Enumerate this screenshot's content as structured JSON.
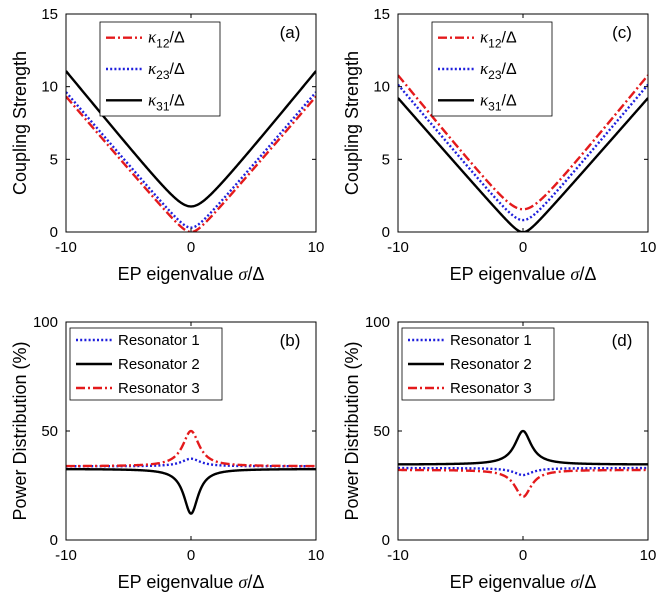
{
  "chart_data": [
    {
      "type": "line",
      "panel_label": "(a)",
      "xlabel": "EP eigenvalue σ/Δ",
      "ylabel": "Coupling Strength",
      "xlim": [
        -10,
        10
      ],
      "ylim": [
        0,
        15
      ],
      "xticks": [
        "-10",
        "0",
        "10"
      ],
      "yticks": [
        "0",
        "5",
        "10",
        "15"
      ],
      "legend_position": "top-center",
      "series": [
        {
          "name": "κ12/Δ",
          "sym": "κ",
          "sub": "12",
          "den": "/Δ",
          "style": "dashdot",
          "color": "#e41a1c",
          "curve": "hyperbola",
          "offset": -0.7,
          "slope": 1,
          "core": 0.7
        },
        {
          "name": "κ23/Δ",
          "sym": "κ",
          "sub": "23",
          "den": "/Δ",
          "style": "dotted",
          "color": "#1f1fdc",
          "curve": "hyperbola",
          "offset": -0.4,
          "slope": 1,
          "core": 0.7
        },
        {
          "name": "κ31/Δ",
          "sym": "κ",
          "sub": "31",
          "den": "/Δ",
          "style": "solid",
          "color": "#000000",
          "curve": "hyperbola",
          "offset": 0.5,
          "slope": 1.05,
          "core": 1.2
        }
      ]
    },
    {
      "type": "line",
      "panel_label": "(c)",
      "xlabel": "EP eigenvalue σ/Δ",
      "ylabel": "Coupling Strength",
      "xlim": [
        -10,
        10
      ],
      "ylim": [
        0,
        15
      ],
      "xticks": [
        "-10",
        "0",
        "10"
      ],
      "yticks": [
        "0",
        "5",
        "10",
        "15"
      ],
      "legend_position": "top-center",
      "series": [
        {
          "name": "κ12/Δ",
          "sym": "κ",
          "sub": "12",
          "den": "/Δ",
          "style": "dashdot",
          "color": "#e41a1c",
          "curve": "hyperbola",
          "offset": 0.2,
          "slope": 1.05,
          "core": 1.3
        },
        {
          "name": "κ23/Δ",
          "sym": "κ",
          "sub": "23",
          "den": "/Δ",
          "style": "dotted",
          "color": "#1f1fdc",
          "curve": "hyperbola",
          "offset": -0.1,
          "slope": 1.02,
          "core": 0.9
        },
        {
          "name": "κ31/Δ",
          "sym": "κ",
          "sub": "31",
          "den": "/Δ",
          "style": "solid",
          "color": "#000000",
          "curve": "hyperbola",
          "offset": -0.6,
          "slope": 0.98,
          "core": 0.6
        }
      ]
    },
    {
      "type": "line",
      "panel_label": "(b)",
      "xlabel": "EP eigenvalue σ/Δ",
      "ylabel": "Power Distribution (%)",
      "xlim": [
        -10,
        10
      ],
      "ylim": [
        0,
        100
      ],
      "xticks": [
        "-10",
        "0",
        "10"
      ],
      "yticks": [
        "0",
        "50",
        "100"
      ],
      "legend_position": "top-left",
      "series": [
        {
          "name": "Resonator 1",
          "style": "dotted",
          "color": "#1f1fdc",
          "curve": "lorentz",
          "base": 33.8,
          "amp": 3.5,
          "width": 0.9
        },
        {
          "name": "Resonator 2",
          "style": "solid",
          "color": "#000000",
          "curve": "lorentz",
          "base": 32.6,
          "amp": -20.5,
          "width": 0.7
        },
        {
          "name": "Resonator 3",
          "style": "dashdot",
          "color": "#e41a1c",
          "curve": "lorentz",
          "base": 33.8,
          "amp": 16.2,
          "width": 0.8
        }
      ]
    },
    {
      "type": "line",
      "panel_label": "(d)",
      "xlabel": "EP eigenvalue σ/Δ",
      "ylabel": "Power Distribution (%)",
      "xlim": [
        -10,
        10
      ],
      "ylim": [
        0,
        100
      ],
      "xticks": [
        "-10",
        "0",
        "10"
      ],
      "yticks": [
        "0",
        "50",
        "100"
      ],
      "legend_position": "top-left",
      "series": [
        {
          "name": "Resonator 1",
          "style": "dotted",
          "color": "#1f1fdc",
          "curve": "lorentz",
          "base": 33.0,
          "amp": -3.2,
          "width": 0.9
        },
        {
          "name": "Resonator 2",
          "style": "solid",
          "color": "#000000",
          "curve": "lorentz",
          "base": 34.6,
          "amp": 15.4,
          "width": 0.8
        },
        {
          "name": "Resonator 3",
          "style": "dashdot",
          "color": "#e41a1c",
          "curve": "lorentz",
          "base": 32.2,
          "amp": -12.4,
          "width": 0.8
        }
      ]
    }
  ]
}
